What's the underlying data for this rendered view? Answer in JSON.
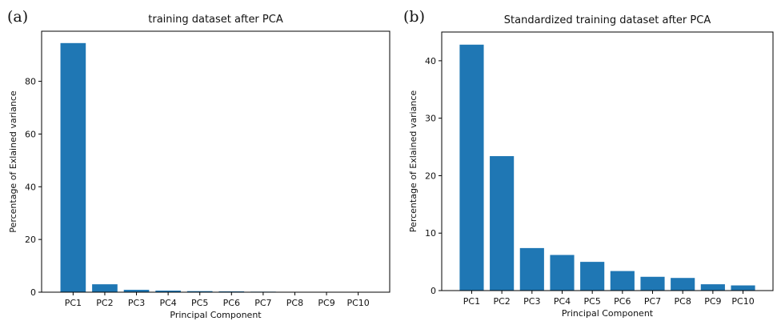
{
  "chart_data": [
    {
      "type": "bar",
      "panel_label": "(a)",
      "title": "training dataset after PCA",
      "xlabel": "Principal Component",
      "ylabel": "Percentage of Exlained variance",
      "categories": [
        "PC1",
        "PC2",
        "PC3",
        "PC4",
        "PC5",
        "PC6",
        "PC7",
        "PC8",
        "PC9",
        "PC10"
      ],
      "values": [
        94.5,
        3.0,
        0.9,
        0.6,
        0.4,
        0.3,
        0.2,
        0.1,
        0.05,
        0.03
      ],
      "ylim": [
        0,
        99
      ],
      "yticks": [
        0,
        20,
        40,
        60,
        80
      ],
      "bar_color": "#1f77b4",
      "grid": false
    },
    {
      "type": "bar",
      "panel_label": "(b)",
      "title": "Standardized training dataset after PCA",
      "xlabel": "Principal Component",
      "ylabel": "Percentage of Exlained variance",
      "categories": [
        "PC1",
        "PC2",
        "PC3",
        "PC4",
        "PC5",
        "PC6",
        "PC7",
        "PC8",
        "PC9",
        "PC10"
      ],
      "values": [
        42.8,
        23.4,
        7.4,
        6.2,
        5.0,
        3.4,
        2.4,
        2.2,
        1.1,
        0.9
      ],
      "ylim": [
        0,
        45
      ],
      "yticks": [
        0,
        10,
        20,
        30,
        40
      ],
      "bar_color": "#1f77b4",
      "grid": false
    }
  ]
}
